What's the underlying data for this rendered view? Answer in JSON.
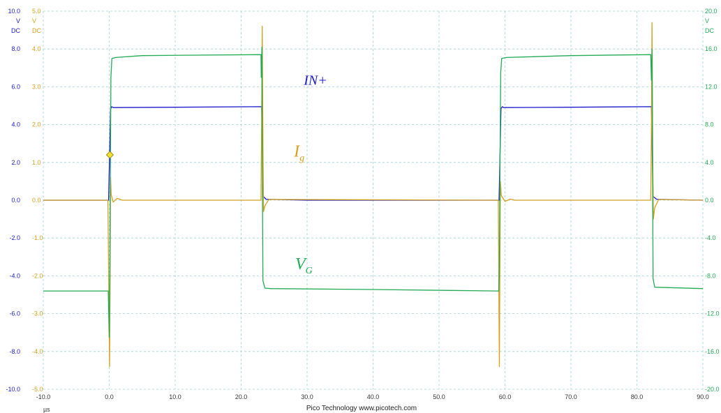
{
  "colors": {
    "blue": "#1a1acc",
    "yellow": "#d4a020",
    "green": "#22aa55",
    "grid": "#9fd3d3",
    "marker": "#f0e030"
  },
  "footer": {
    "brand": "Pico Technology   www.picotech.com",
    "x_unit": "µs"
  },
  "channels": {
    "blue": {
      "max": "10.0",
      "unit": "V",
      "coupling": "DC"
    },
    "yellow": {
      "max": "5.0",
      "unit": "V",
      "coupling": "DC"
    },
    "green": {
      "max": "20.0",
      "unit": "V",
      "coupling": "DC"
    }
  },
  "chart_data": {
    "type": "line",
    "x_range": [
      -10,
      90
    ],
    "x_ticks": [
      "-10.0",
      "0.0",
      "10.0",
      "20.0",
      "30.0",
      "40.0",
      "50.0",
      "60.0",
      "70.0",
      "80.0",
      "90.0"
    ],
    "axes": {
      "blue": {
        "range": [
          -10,
          10
        ],
        "ticks": [
          "10.0",
          "8.0",
          "6.0",
          "4.0",
          "2.0",
          "0.0",
          "-2.0",
          "-4.0",
          "-6.0",
          "-8.0",
          "-10.0"
        ]
      },
      "yellow": {
        "range": [
          -5,
          5
        ],
        "ticks": [
          "5.0",
          "4.0",
          "3.0",
          "2.0",
          "1.0",
          "0.0",
          "-1.0",
          "-2.0",
          "-3.0",
          "-4.0",
          "-5.0"
        ]
      },
      "green": {
        "range": [
          -20,
          20
        ],
        "ticks": [
          "20.0",
          "16.0",
          "12.0",
          "8.0",
          "4.0",
          "0.0",
          "-4.0",
          "-8.0",
          "-12.0",
          "-16.0",
          "-20.0"
        ]
      }
    },
    "grid": true,
    "trigger": {
      "x": 0.1,
      "y_blue": 2.4
    },
    "annotations": [
      {
        "id": "in",
        "text": "IN+",
        "color": "blue",
        "x": 29.5,
        "y_blue": 6.1
      },
      {
        "id": "ig",
        "text": "I",
        "sub": "g",
        "color": "yellow",
        "x": 28.0,
        "y_yellow": 1.15
      },
      {
        "id": "vg",
        "text": "V",
        "sub": "G",
        "color": "green",
        "x": 28.2,
        "y_green": -7.3
      }
    ],
    "series": [
      {
        "key": "IN+",
        "axis": "blue",
        "color": "blue",
        "points": [
          [
            -10,
            0
          ],
          [
            -0.1,
            0
          ],
          [
            0.2,
            4.8
          ],
          [
            0.35,
            4.95
          ],
          [
            0.6,
            4.9
          ],
          [
            10,
            4.92
          ],
          [
            23.1,
            4.95
          ],
          [
            23.35,
            0.2
          ],
          [
            23.8,
            0.05
          ],
          [
            30,
            0
          ],
          [
            59.1,
            0
          ],
          [
            59.4,
            4.85
          ],
          [
            59.6,
            4.95
          ],
          [
            59.8,
            4.9
          ],
          [
            70,
            4.92
          ],
          [
            82.2,
            4.95
          ],
          [
            82.45,
            0.2
          ],
          [
            83,
            0.05
          ],
          [
            90,
            0
          ]
        ]
      },
      {
        "key": "Ig",
        "axis": "yellow",
        "color": "yellow",
        "points": [
          [
            -10,
            0
          ],
          [
            -0.2,
            0
          ],
          [
            0.0,
            -3.5
          ],
          [
            0.05,
            -4.4
          ],
          [
            0.12,
            -2.5
          ],
          [
            0.2,
            0.6
          ],
          [
            0.3,
            0.15
          ],
          [
            0.6,
            -0.05
          ],
          [
            1.2,
            0.05
          ],
          [
            2,
            0
          ],
          [
            23.0,
            0
          ],
          [
            23.1,
            2.0
          ],
          [
            23.2,
            4.6
          ],
          [
            23.3,
            1.5
          ],
          [
            23.4,
            -0.3
          ],
          [
            23.6,
            -0.15
          ],
          [
            24.2,
            0.02
          ],
          [
            59.0,
            0
          ],
          [
            59.1,
            -3.2
          ],
          [
            59.15,
            -4.4
          ],
          [
            59.22,
            -2.0
          ],
          [
            59.3,
            0.5
          ],
          [
            59.45,
            0.12
          ],
          [
            60,
            -0.03
          ],
          [
            60.8,
            0.03
          ],
          [
            61.5,
            0
          ],
          [
            82.1,
            0
          ],
          [
            82.2,
            1.8
          ],
          [
            82.3,
            4.7
          ],
          [
            82.4,
            1.2
          ],
          [
            82.5,
            -0.5
          ],
          [
            82.7,
            -0.2
          ],
          [
            83.3,
            0.02
          ],
          [
            90,
            0
          ]
        ]
      },
      {
        "key": "VG",
        "axis": "green",
        "color": "green",
        "points": [
          [
            -10,
            -9.6
          ],
          [
            -0.15,
            -9.6
          ],
          [
            0.0,
            -14.5
          ],
          [
            0.08,
            -9.0
          ],
          [
            0.16,
            1.0
          ],
          [
            0.25,
            13.0
          ],
          [
            0.4,
            15.0
          ],
          [
            1.0,
            15.1
          ],
          [
            5,
            15.3
          ],
          [
            23.0,
            15.4
          ],
          [
            23.05,
            13.0
          ],
          [
            23.15,
            16.2
          ],
          [
            23.22,
            3.0
          ],
          [
            23.3,
            -8.5
          ],
          [
            23.6,
            -9.3
          ],
          [
            24.5,
            -9.35
          ],
          [
            40,
            -9.45
          ],
          [
            59.05,
            -9.6
          ],
          [
            59.15,
            -7.3
          ],
          [
            59.25,
            4.0
          ],
          [
            59.35,
            13.5
          ],
          [
            59.5,
            15.0
          ],
          [
            60.2,
            15.1
          ],
          [
            70,
            15.3
          ],
          [
            82.1,
            15.4
          ],
          [
            82.2,
            12.7
          ],
          [
            82.3,
            16.0
          ],
          [
            82.38,
            2.0
          ],
          [
            82.45,
            -8.3
          ],
          [
            82.7,
            -9.2
          ],
          [
            90,
            -9.35
          ]
        ]
      }
    ]
  }
}
